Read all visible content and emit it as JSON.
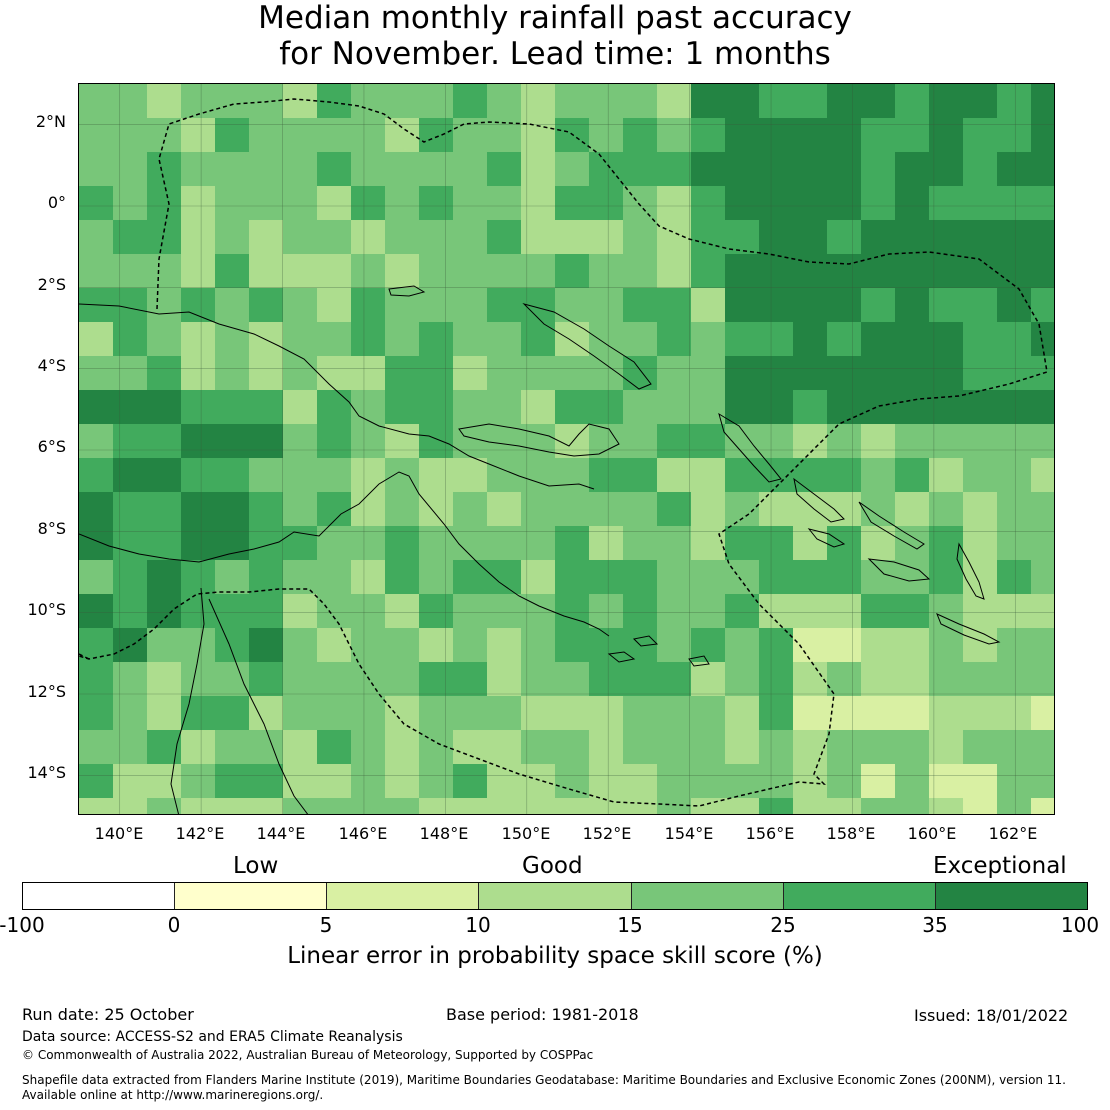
{
  "title": {
    "line1": "Median monthly rainfall past accuracy",
    "line2": "for November. Lead time: 1 months"
  },
  "map": {
    "lon_labels": [
      "140°E",
      "142°E",
      "144°E",
      "146°E",
      "148°E",
      "150°E",
      "152°E",
      "154°E",
      "156°E",
      "158°E",
      "160°E",
      "162°E"
    ],
    "lat_labels": [
      "2°N",
      "0°",
      "2°S",
      "4°S",
      "6°S",
      "8°S",
      "10°S",
      "12°S",
      "14°S"
    ],
    "lon_range": [
      139,
      163
    ],
    "lat_range": [
      -15,
      3
    ],
    "gridlines": true,
    "boundary_style": "dashed"
  },
  "colorbar": {
    "categories": [
      "Low",
      "Good",
      "Exceptional"
    ],
    "ticks": [
      "-100",
      "0",
      "5",
      "10",
      "15",
      "25",
      "35",
      "100"
    ],
    "colors": [
      "#ffffff",
      "#ffffcc",
      "#d9f0a3",
      "#addd8e",
      "#78c679",
      "#41ab5d",
      "#238443"
    ],
    "label": "Linear error in probability space skill score (%)"
  },
  "footer": {
    "run_date": "Run date: 25 October",
    "base_period": "Base period: 1981-2018",
    "issued": "Issued: 18/01/2022",
    "data_source": "Data source: ACCESS-S2 and ERA5 Climate Reanalysis",
    "copyright": "© Commonwealth of Australia 2022, Australian Bureau of Meteorology, Supported by COSPPac",
    "shapefile_line1": "Shapefile data extracted from Flanders Marine Institute (2019), Maritime Boundaries Geodatabase: Maritime Boundaries and Exclusive Economic Zones (200NM), version 11.",
    "shapefile_line2": "Available online at http://www.marineregions.org/."
  }
}
